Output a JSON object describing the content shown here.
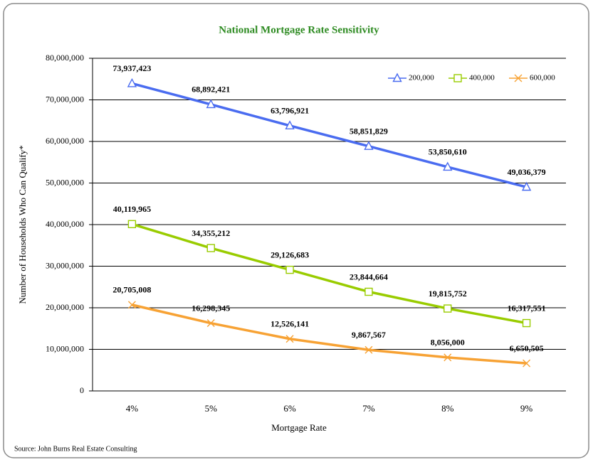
{
  "chart_data": {
    "type": "line",
    "title": "National Mortgage Rate Sensitivity",
    "x_label": "Mortgage Rate",
    "y_label": "Number of Households Who Can Qualify*",
    "source": "Source: John Burns Real Estate Consulting",
    "categories": [
      "4%",
      "5%",
      "6%",
      "7%",
      "8%",
      "9%"
    ],
    "ylim": [
      0,
      80000000
    ],
    "yticks": [
      0,
      {
        "value": 10000000,
        "label": "10,000,000"
      },
      {
        "value": 20000000,
        "label": "20,000,000"
      },
      {
        "value": 30000000,
        "label": "30,000,000"
      },
      {
        "value": 40000000,
        "label": "40,000,000"
      },
      {
        "value": 50000000,
        "label": "50,000,000"
      },
      {
        "value": 60000000,
        "label": "60,000,000"
      },
      {
        "value": 70000000,
        "label": "70,000,000"
      },
      {
        "value": 80000000,
        "label": "80,000,000"
      }
    ],
    "grid": true,
    "legend": "upper right",
    "series": [
      {
        "name": "200,000",
        "color": "#4a6cf0",
        "marker": "triangle",
        "values": [
          73937423,
          68892421,
          63796921,
          58851829,
          53850610,
          49036379
        ],
        "value_labels": [
          "73,937,423",
          "68,892,421",
          "63,796,921",
          "58,851,829",
          "53,850,610",
          "49,036,379"
        ]
      },
      {
        "name": "400,000",
        "color": "#99cc00",
        "marker": "square",
        "values": [
          40119965,
          34355212,
          29126683,
          23844664,
          19815752,
          16317551
        ],
        "value_labels": [
          "40,119,965",
          "34,355,212",
          "29,126,683",
          "23,844,664",
          "19,815,752",
          "16,317,551"
        ]
      },
      {
        "name": "600,000",
        "color": "#f7a234",
        "marker": "x",
        "values": [
          20705008,
          16298345,
          12526141,
          9867567,
          8056000,
          6650505
        ],
        "value_labels": [
          "20,705,008",
          "16,298,345",
          "12,526,141",
          "9,867,567",
          "8,056,000",
          "6,650,505"
        ]
      }
    ]
  }
}
